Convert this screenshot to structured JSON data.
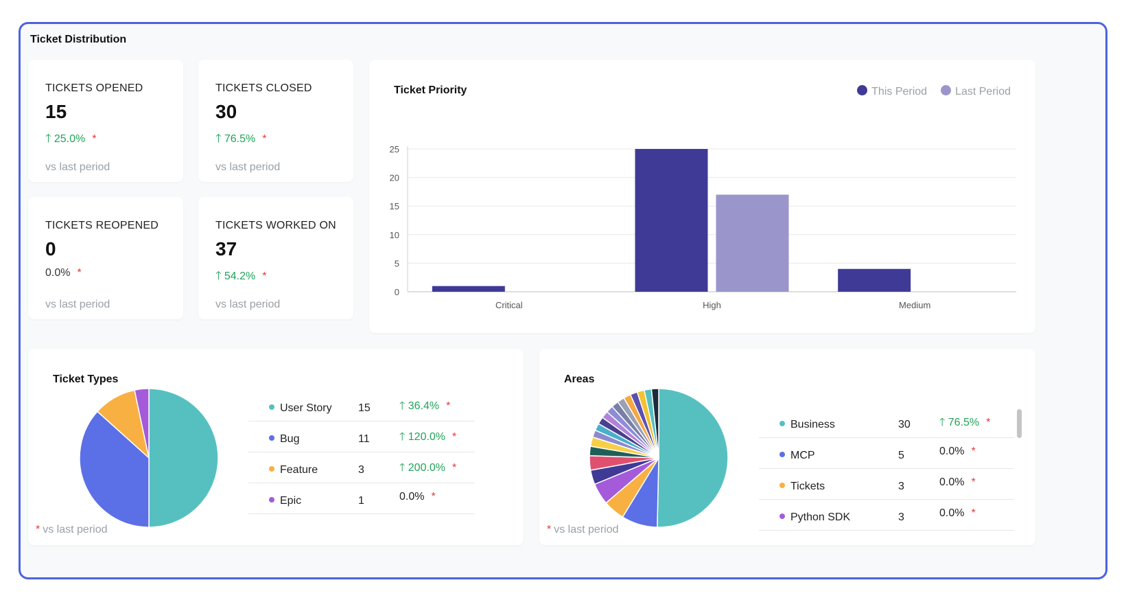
{
  "section_title": "Ticket Distribution",
  "stats": [
    {
      "label": "TICKETS OPENED",
      "value": "15",
      "change": "25.0%",
      "direction": "up",
      "star": "*",
      "sub": "vs last period"
    },
    {
      "label": "TICKETS CLOSED",
      "value": "30",
      "change": "76.5%",
      "direction": "up",
      "star": "*",
      "sub": "vs last period"
    },
    {
      "label": "TICKETS REOPENED",
      "value": "0",
      "change": "0.0%",
      "direction": "none",
      "star": "*",
      "sub": "vs last period"
    },
    {
      "label": "TICKETS WORKED ON",
      "value": "37",
      "change": "54.2%",
      "direction": "up",
      "star": "*",
      "sub": "vs last period"
    }
  ],
  "priority": {
    "title": "Ticket Priority",
    "legend": [
      "This Period",
      "Last Period"
    ]
  },
  "types": {
    "title": "Ticket Types",
    "footnote": "vs last period",
    "star": "*",
    "rows": [
      {
        "name": "User Story",
        "count": "15",
        "change": "36.4%",
        "direction": "up",
        "color": "#56c0c0"
      },
      {
        "name": "Bug",
        "count": "11",
        "change": "120.0%",
        "direction": "up",
        "color": "#5b6fe6"
      },
      {
        "name": "Feature",
        "count": "3",
        "change": "200.0%",
        "direction": "up",
        "color": "#f9b042"
      },
      {
        "name": "Epic",
        "count": "1",
        "change": "0.0%",
        "direction": "none",
        "color": "#a45ad9"
      }
    ]
  },
  "areas": {
    "title": "Areas",
    "footnote": "vs last period",
    "star": "*",
    "rows": [
      {
        "name": "Business",
        "count": "30",
        "change": "76.5%",
        "direction": "up",
        "color": "#56c0c0"
      },
      {
        "name": "MCP",
        "count": "5",
        "change": "0.0%",
        "direction": "none",
        "color": "#5b6fe6"
      },
      {
        "name": "Tickets",
        "count": "3",
        "change": "0.0%",
        "direction": "none",
        "color": "#f9b042"
      },
      {
        "name": "Python SDK",
        "count": "3",
        "change": "0.0%",
        "direction": "none",
        "color": "#a45ad9"
      }
    ]
  },
  "chart_data": [
    {
      "type": "bar",
      "title": "Ticket Priority",
      "categories": [
        "Critical",
        "High",
        "Medium"
      ],
      "series": [
        {
          "name": "This Period",
          "values": [
            1,
            25,
            4
          ],
          "color": "#3f3a96"
        },
        {
          "name": "Last Period",
          "values": [
            0,
            17,
            0
          ],
          "color": "#9a96cb"
        }
      ],
      "yticks": [
        0,
        5,
        10,
        15,
        20,
        25
      ],
      "ylim": [
        0,
        25
      ],
      "grid": true,
      "legend_position": "top-right"
    },
    {
      "type": "pie",
      "title": "Ticket Types",
      "labels": [
        "User Story",
        "Bug",
        "Feature",
        "Epic"
      ],
      "values": [
        15,
        11,
        3,
        1
      ],
      "colors": [
        "#56c0c0",
        "#5b6fe6",
        "#f9b042",
        "#a45ad9"
      ]
    },
    {
      "type": "pie",
      "title": "Areas",
      "values": [
        30,
        5,
        3,
        3,
        2,
        2,
        1.3,
        1.3,
        1,
        1,
        1,
        1,
        1,
        1,
        1,
        1,
        1,
        1,
        1,
        1
      ],
      "colors": [
        "#56c0c0",
        "#5b6fe6",
        "#f9b042",
        "#a45ad9",
        "#3f3a96",
        "#e0506e",
        "#1f5f5a",
        "#f7cf47",
        "#8a8ad0",
        "#49b0cc",
        "#4a3f8f",
        "#b083d9",
        "#8c8cd8",
        "#7a7fa8",
        "#9aa0b5",
        "#f5a742",
        "#5b4fb0",
        "#f1c232",
        "#56c0c0",
        "#1a2b3c"
      ]
    }
  ]
}
